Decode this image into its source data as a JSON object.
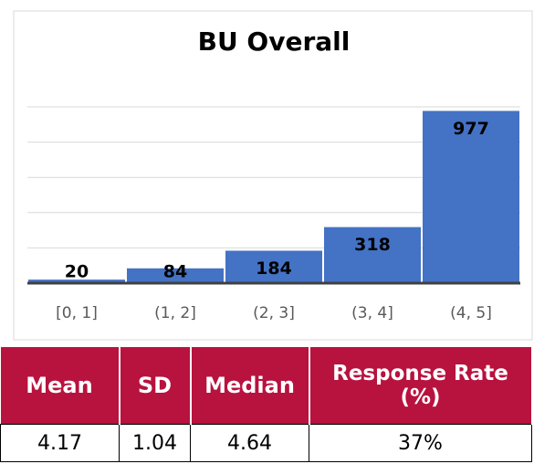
{
  "chart_data": {
    "type": "bar",
    "title": "BU Overall",
    "categories": [
      "[0, 1]",
      "(1, 2]",
      "(2, 3]",
      "(3, 4]",
      "(4, 5]"
    ],
    "values": [
      20,
      84,
      184,
      318,
      977
    ],
    "color": "#4472c4",
    "ylim": [
      0,
      1000
    ],
    "yticks": [
      0,
      200,
      400,
      600,
      800,
      1000
    ],
    "grid": true
  },
  "table": {
    "header": [
      "Mean",
      "SD",
      "Median",
      "Response Rate (%)"
    ],
    "rows": [
      [
        "4.17",
        "1.04",
        "4.64",
        "37%"
      ]
    ]
  }
}
